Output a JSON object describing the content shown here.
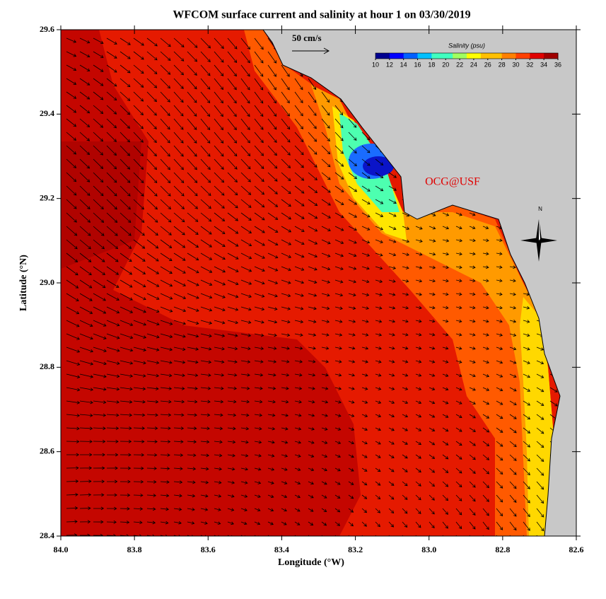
{
  "title": "WFCOM surface current and salinity at hour 1 on 03/30/2019",
  "x_axis": {
    "label": "Longitude (°W)",
    "lim": [
      84.0,
      82.6
    ],
    "ticks": [
      {
        "value": 84.0,
        "label": "84.0"
      },
      83.8,
      83.6,
      83.4,
      83.2,
      {
        "value": 83.0,
        "label": "83.0"
      },
      82.8,
      82.6
    ]
  },
  "y_axis": {
    "label": "Latitude (°N)",
    "lim": [
      28.4,
      29.6
    ],
    "ticks": [
      28.4,
      28.6,
      28.8,
      {
        "value": 29.0,
        "label": "29.0"
      },
      29.2,
      29.4,
      29.6
    ]
  },
  "colorbar": {
    "label": "Salinity (psu)",
    "lim": [
      10,
      36
    ],
    "ticks": [
      10,
      12,
      14,
      16,
      18,
      20,
      22,
      24,
      26,
      28,
      30,
      32,
      34,
      36
    ]
  },
  "scale_label": "50 cm/s",
  "credit": "OCG@USF",
  "compass": "N"
}
